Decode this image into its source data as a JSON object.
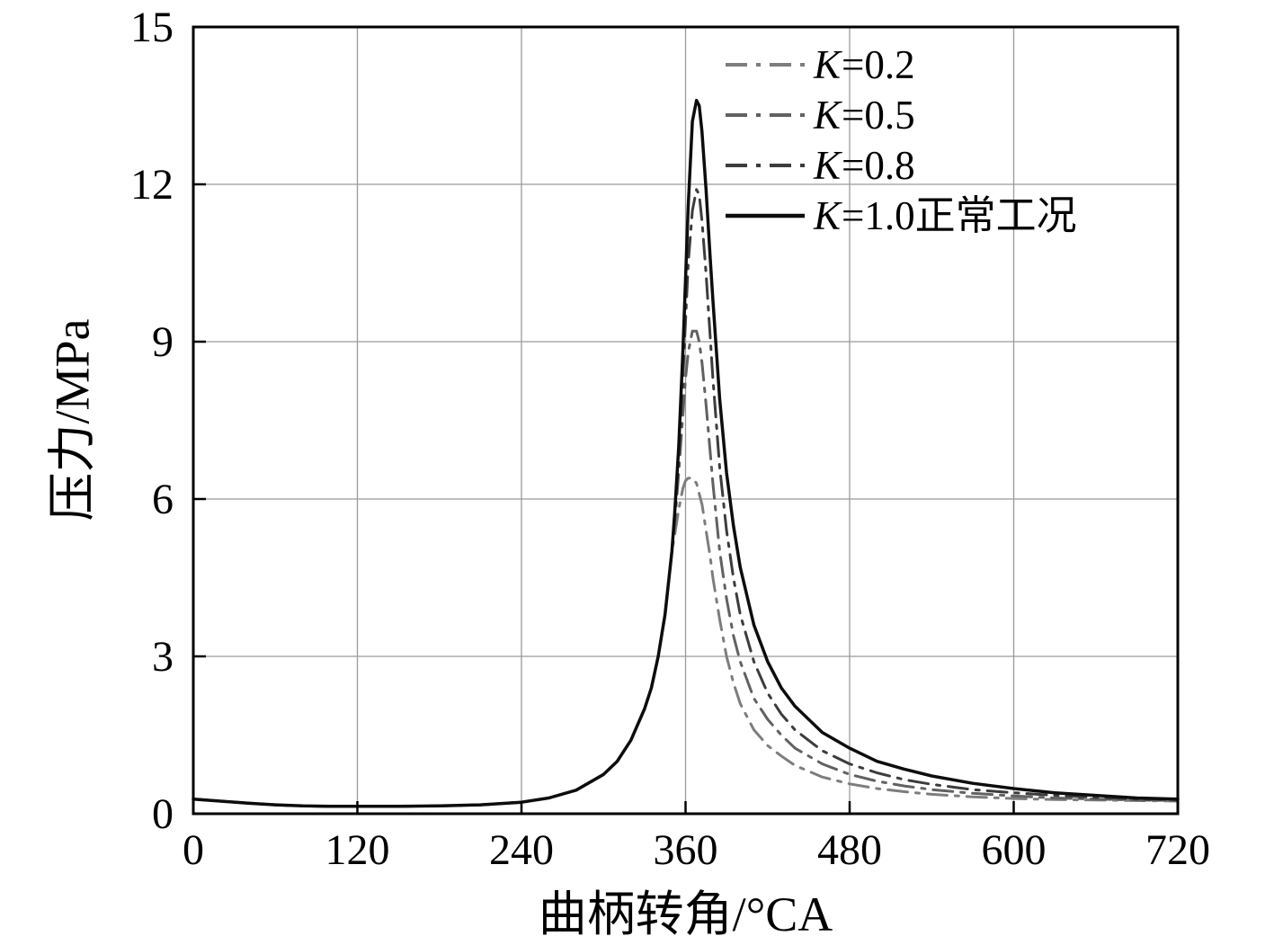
{
  "chart_data": {
    "type": "line",
    "title": "",
    "xlabel": "曲柄转角/°CA",
    "ylabel": "压力/MPa",
    "xlim": [
      0,
      720
    ],
    "ylim": [
      0,
      15
    ],
    "xticks": [
      0,
      120,
      240,
      360,
      480,
      600,
      720
    ],
    "yticks": [
      0,
      3,
      6,
      9,
      12,
      15
    ],
    "grid": true,
    "grid_color": "#9a9a9a",
    "axis_color": "#000000",
    "background": "#ffffff",
    "legend_position": "top-right-inside",
    "x": [
      0,
      20,
      40,
      60,
      80,
      100,
      120,
      150,
      180,
      210,
      240,
      260,
      280,
      300,
      310,
      320,
      330,
      335,
      340,
      345,
      350,
      352,
      355,
      358,
      360,
      362,
      365,
      368,
      370,
      372,
      375,
      378,
      380,
      385,
      390,
      395,
      400,
      410,
      420,
      430,
      440,
      460,
      480,
      500,
      520,
      540,
      570,
      600,
      630,
      660,
      690,
      720
    ],
    "series": [
      {
        "name": "K=0.2",
        "legend_k": "K",
        "legend_rest": "=0.2",
        "style": "dashdot",
        "color": "#7d7d7d",
        "width": 3,
        "values": [
          0.28,
          0.24,
          0.2,
          0.17,
          0.15,
          0.14,
          0.14,
          0.14,
          0.15,
          0.17,
          0.22,
          0.3,
          0.45,
          0.75,
          1.0,
          1.4,
          2.0,
          2.4,
          3.0,
          3.8,
          5.0,
          5.3,
          5.8,
          6.2,
          6.35,
          6.4,
          6.4,
          6.3,
          6.1,
          5.9,
          5.4,
          4.9,
          4.5,
          3.7,
          3.0,
          2.5,
          2.1,
          1.6,
          1.3,
          1.1,
          0.92,
          0.7,
          0.57,
          0.48,
          0.42,
          0.37,
          0.32,
          0.29,
          0.27,
          0.26,
          0.25,
          0.24
        ]
      },
      {
        "name": "K=0.5",
        "legend_k": "K",
        "legend_rest": "=0.5",
        "style": "dashdot",
        "color": "#616161",
        "width": 3,
        "values": [
          0.28,
          0.24,
          0.2,
          0.17,
          0.15,
          0.14,
          0.14,
          0.14,
          0.15,
          0.17,
          0.22,
          0.3,
          0.45,
          0.75,
          1.0,
          1.4,
          2.0,
          2.4,
          3.0,
          3.8,
          5.0,
          5.5,
          6.5,
          7.6,
          8.3,
          8.8,
          9.2,
          9.2,
          9.0,
          8.6,
          7.8,
          6.9,
          6.3,
          5.0,
          4.1,
          3.4,
          2.9,
          2.2,
          1.8,
          1.5,
          1.25,
          0.95,
          0.75,
          0.62,
          0.53,
          0.46,
          0.39,
          0.34,
          0.3,
          0.28,
          0.26,
          0.25
        ]
      },
      {
        "name": "K=0.8",
        "legend_k": "K",
        "legend_rest": "=0.8",
        "style": "dashdot",
        "color": "#3c3c3c",
        "width": 3,
        "values": [
          0.28,
          0.24,
          0.2,
          0.17,
          0.15,
          0.14,
          0.14,
          0.14,
          0.15,
          0.17,
          0.22,
          0.3,
          0.45,
          0.75,
          1.0,
          1.4,
          2.0,
          2.4,
          3.0,
          3.8,
          5.0,
          5.6,
          6.8,
          8.3,
          9.4,
          10.5,
          11.5,
          11.9,
          11.8,
          11.3,
          10.3,
          9.1,
          8.3,
          6.6,
          5.4,
          4.5,
          3.8,
          2.9,
          2.3,
          1.9,
          1.6,
          1.2,
          0.95,
          0.78,
          0.65,
          0.56,
          0.46,
          0.4,
          0.35,
          0.31,
          0.28,
          0.27
        ]
      },
      {
        "name": "K=1.0正常工况",
        "legend_k": "K",
        "legend_rest": "=1.0正常工况",
        "style": "solid",
        "color": "#0d0d0d",
        "width": 3.5,
        "values": [
          0.28,
          0.24,
          0.2,
          0.17,
          0.15,
          0.14,
          0.14,
          0.14,
          0.15,
          0.17,
          0.22,
          0.3,
          0.45,
          0.75,
          1.0,
          1.4,
          2.0,
          2.4,
          3.0,
          3.8,
          5.0,
          5.7,
          7.0,
          8.8,
          10.2,
          11.6,
          13.2,
          13.6,
          13.5,
          13.0,
          11.9,
          10.6,
          9.8,
          7.9,
          6.5,
          5.5,
          4.7,
          3.6,
          2.9,
          2.4,
          2.05,
          1.55,
          1.25,
          1.0,
          0.85,
          0.72,
          0.58,
          0.48,
          0.4,
          0.35,
          0.3,
          0.28
        ]
      }
    ]
  }
}
